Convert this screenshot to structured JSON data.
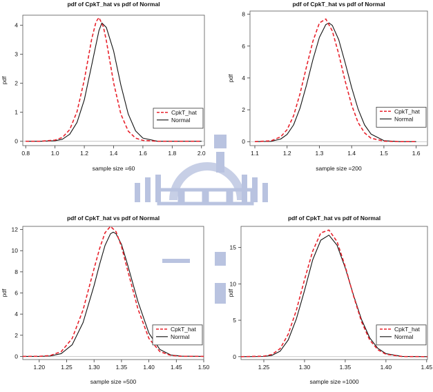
{
  "chart_data": [
    {
      "type": "line",
      "title": "pdf of CpkT_hat vs pdf of Normal",
      "xlabel": "sample size =60",
      "ylabel": "pdf",
      "xlim": [
        0.78,
        2.02
      ],
      "ylim": [
        -0.15,
        4.35
      ],
      "xticks": [
        "0.8",
        "1.0",
        "1.2",
        "1.4",
        "1.6",
        "1.8",
        "2.0"
      ],
      "xtick_values": [
        0.8,
        1.0,
        1.2,
        1.4,
        1.6,
        1.8,
        2.0
      ],
      "yticks": [
        "0",
        "1",
        "2",
        "3",
        "4"
      ],
      "ytick_values": [
        0,
        1,
        2,
        3,
        4
      ],
      "legend": "right",
      "series": [
        {
          "name": "CpkT_hat",
          "color": "#e8212b",
          "dash": "dashed",
          "x": [
            0.8,
            0.9,
            1.0,
            1.05,
            1.1,
            1.15,
            1.2,
            1.25,
            1.28,
            1.3,
            1.33,
            1.35,
            1.4,
            1.45,
            1.5,
            1.55,
            1.6,
            1.7,
            1.8,
            2.0
          ],
          "y": [
            0.0,
            0.0,
            0.04,
            0.13,
            0.4,
            1.02,
            2.12,
            3.52,
            4.12,
            4.27,
            3.95,
            3.48,
            2.02,
            0.93,
            0.35,
            0.11,
            0.03,
            0.0,
            0.0,
            0.0
          ]
        },
        {
          "name": "Normal",
          "color": "#111111",
          "dash": "solid",
          "x": [
            0.8,
            0.9,
            1.0,
            1.05,
            1.1,
            1.15,
            1.2,
            1.25,
            1.3,
            1.32,
            1.35,
            1.4,
            1.45,
            1.5,
            1.55,
            1.6,
            1.7,
            1.8,
            2.0
          ],
          "y": [
            0.0,
            0.0,
            0.02,
            0.07,
            0.24,
            0.65,
            1.43,
            2.62,
            3.82,
            4.08,
            3.93,
            3.12,
            1.93,
            0.94,
            0.36,
            0.11,
            0.0,
            0.0,
            0.0
          ]
        }
      ]
    },
    {
      "type": "line",
      "title": "pdf of CpkT_hat vs pdf of Normal",
      "xlabel": "sample size =200",
      "ylabel": "pdf",
      "xlim": [
        1.085,
        1.635
      ],
      "ylim": [
        -0.25,
        8.2
      ],
      "xticks": [
        "1.1",
        "1.2",
        "1.3",
        "1.4",
        "1.5",
        "1.6"
      ],
      "xtick_values": [
        1.1,
        1.2,
        1.3,
        1.4,
        1.5,
        1.6
      ],
      "yticks": [
        "0",
        "2",
        "4",
        "6",
        "8"
      ],
      "ytick_values": [
        0,
        2,
        4,
        6,
        8
      ],
      "legend": "right",
      "series": [
        {
          "name": "CpkT_hat",
          "color": "#e8212b",
          "dash": "dashed",
          "x": [
            1.1,
            1.15,
            1.18,
            1.2,
            1.22,
            1.24,
            1.26,
            1.28,
            1.3,
            1.32,
            1.34,
            1.36,
            1.38,
            1.4,
            1.42,
            1.44,
            1.46,
            1.5,
            1.55,
            1.6
          ],
          "y": [
            0.0,
            0.05,
            0.3,
            0.75,
            1.62,
            3.0,
            4.7,
            6.3,
            7.45,
            7.7,
            6.95,
            5.5,
            3.8,
            2.3,
            1.2,
            0.55,
            0.22,
            0.03,
            0.0,
            0.0
          ]
        },
        {
          "name": "Normal",
          "color": "#111111",
          "dash": "solid",
          "x": [
            1.1,
            1.15,
            1.18,
            1.2,
            1.22,
            1.24,
            1.26,
            1.28,
            1.3,
            1.32,
            1.33,
            1.34,
            1.36,
            1.38,
            1.4,
            1.42,
            1.44,
            1.46,
            1.5,
            1.55,
            1.6
          ],
          "y": [
            0.0,
            0.02,
            0.16,
            0.45,
            1.05,
            2.1,
            3.55,
            5.15,
            6.55,
            7.35,
            7.45,
            7.3,
            6.4,
            4.95,
            3.4,
            2.05,
            1.05,
            0.48,
            0.06,
            0.0,
            0.0
          ]
        }
      ]
    },
    {
      "type": "line",
      "title": "pdf of CpkT_hat vs pdf of Normal",
      "xlabel": "sample size =500",
      "ylabel": "pdf",
      "xlim": [
        1.17,
        1.5
      ],
      "ylim": [
        -0.3,
        12.3
      ],
      "xticks": [
        "1.20",
        "1.25",
        "1.30",
        "1.35",
        "1.40",
        "1.45",
        "1.50"
      ],
      "xtick_values": [
        1.2,
        1.25,
        1.3,
        1.35,
        1.4,
        1.45,
        1.5
      ],
      "yticks": [
        "0",
        "2",
        "4",
        "6",
        "8",
        "10",
        "12"
      ],
      "ytick_values": [
        0,
        2,
        4,
        6,
        8,
        10,
        12
      ],
      "legend": "right",
      "series": [
        {
          "name": "CpkT_hat",
          "color": "#e8212b",
          "dash": "dashed",
          "x": [
            1.17,
            1.2,
            1.22,
            1.24,
            1.26,
            1.28,
            1.3,
            1.31,
            1.32,
            1.33,
            1.34,
            1.35,
            1.36,
            1.38,
            1.4,
            1.42,
            1.44,
            1.46,
            1.5
          ],
          "y": [
            0.0,
            0.01,
            0.08,
            0.45,
            1.7,
            4.4,
            8.3,
            10.2,
            11.7,
            12.3,
            11.8,
            10.4,
            8.4,
            4.5,
            1.7,
            0.46,
            0.09,
            0.01,
            0.0
          ]
        },
        {
          "name": "Normal",
          "color": "#111111",
          "dash": "solid",
          "x": [
            1.17,
            1.2,
            1.22,
            1.24,
            1.26,
            1.28,
            1.3,
            1.31,
            1.32,
            1.33,
            1.335,
            1.34,
            1.35,
            1.36,
            1.38,
            1.4,
            1.42,
            1.44,
            1.46,
            1.5
          ],
          "y": [
            0.0,
            0.0,
            0.04,
            0.26,
            1.1,
            3.2,
            6.7,
            8.7,
            10.5,
            11.6,
            11.75,
            11.6,
            10.6,
            8.9,
            5.2,
            2.2,
            0.65,
            0.13,
            0.02,
            0.0
          ]
        }
      ]
    },
    {
      "type": "line",
      "title": "pdf of CpkT_hat vs pdf of Normal",
      "xlabel": "sample size =1000",
      "ylabel": "pdf",
      "xlim": [
        1.222,
        1.451
      ],
      "ylim": [
        -0.4,
        17.9
      ],
      "xticks": [
        "1.25",
        "1.30",
        "1.35",
        "1.40",
        "1.45"
      ],
      "xtick_values": [
        1.25,
        1.3,
        1.35,
        1.4,
        1.45
      ],
      "yticks": [
        "0",
        "5",
        "10",
        "15"
      ],
      "ytick_values": [
        0,
        5,
        10,
        15
      ],
      "legend": "right",
      "series": [
        {
          "name": "CpkT_hat",
          "color": "#e8212b",
          "dash": "dashed",
          "x": [
            1.222,
            1.25,
            1.26,
            1.27,
            1.28,
            1.29,
            1.3,
            1.31,
            1.32,
            1.33,
            1.34,
            1.35,
            1.36,
            1.37,
            1.38,
            1.39,
            1.4,
            1.42,
            1.451
          ],
          "y": [
            0.0,
            0.06,
            0.3,
            1.1,
            3.1,
            6.4,
            10.6,
            14.5,
            17.0,
            17.4,
            15.8,
            12.4,
            8.4,
            4.8,
            2.3,
            0.95,
            0.33,
            0.02,
            0.0
          ]
        },
        {
          "name": "Normal",
          "color": "#111111",
          "dash": "solid",
          "x": [
            1.222,
            1.25,
            1.26,
            1.27,
            1.28,
            1.29,
            1.3,
            1.31,
            1.32,
            1.33,
            1.34,
            1.35,
            1.36,
            1.37,
            1.38,
            1.39,
            1.4,
            1.42,
            1.451
          ],
          "y": [
            0.0,
            0.03,
            0.18,
            0.75,
            2.3,
            5.2,
            9.1,
            13.3,
            16.0,
            16.7,
            15.3,
            12.2,
            8.5,
            5.1,
            2.6,
            1.15,
            0.42,
            0.04,
            0.0
          ]
        }
      ]
    }
  ]
}
